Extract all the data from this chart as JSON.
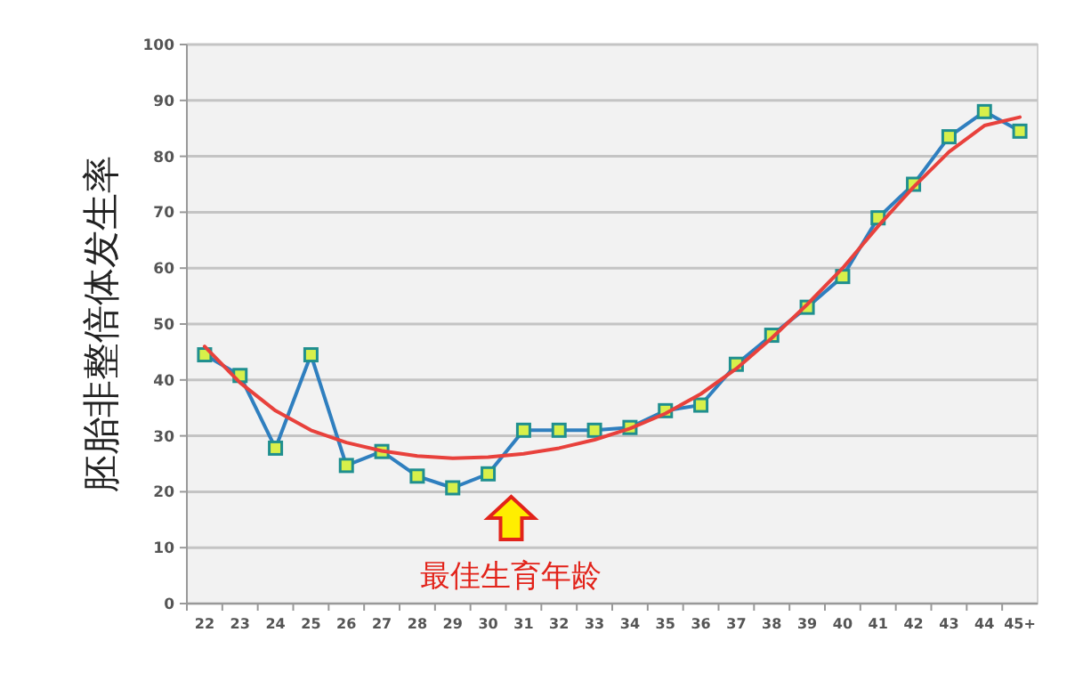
{
  "chart_data": {
    "type": "line",
    "ylabel": "胚胎非整倍体发生率",
    "categories": [
      "22",
      "23",
      "24",
      "25",
      "26",
      "27",
      "28",
      "29",
      "30",
      "31",
      "32",
      "33",
      "34",
      "35",
      "36",
      "37",
      "38",
      "39",
      "40",
      "41",
      "42",
      "43",
      "44",
      "45+"
    ],
    "series": [
      {
        "color": "#2f7fbf",
        "marker": "square",
        "values": [
          44.5,
          40.8,
          27.8,
          44.5,
          24.7,
          27.2,
          22.8,
          20.7,
          23.2,
          31,
          31,
          31,
          31.5,
          34.5,
          35.5,
          42.8,
          48,
          53,
          58.5,
          69,
          75,
          83.5,
          88,
          84.5
        ]
      },
      {
        "color": "#e8413c",
        "marker": "none",
        "values": [
          46,
          39.5,
          34.5,
          31,
          28.8,
          27.3,
          26.4,
          26,
          26.2,
          26.8,
          27.8,
          29.3,
          31.3,
          34,
          37.5,
          42,
          47.5,
          53.5,
          60,
          67.5,
          74.5,
          80.8,
          85.5,
          87
        ]
      }
    ],
    "ylim": [
      0,
      100
    ],
    "yticks": [
      0,
      10,
      20,
      30,
      40,
      50,
      60,
      70,
      80,
      90,
      100
    ],
    "grid": "y",
    "annotations": [
      "最佳生育年龄"
    ]
  }
}
